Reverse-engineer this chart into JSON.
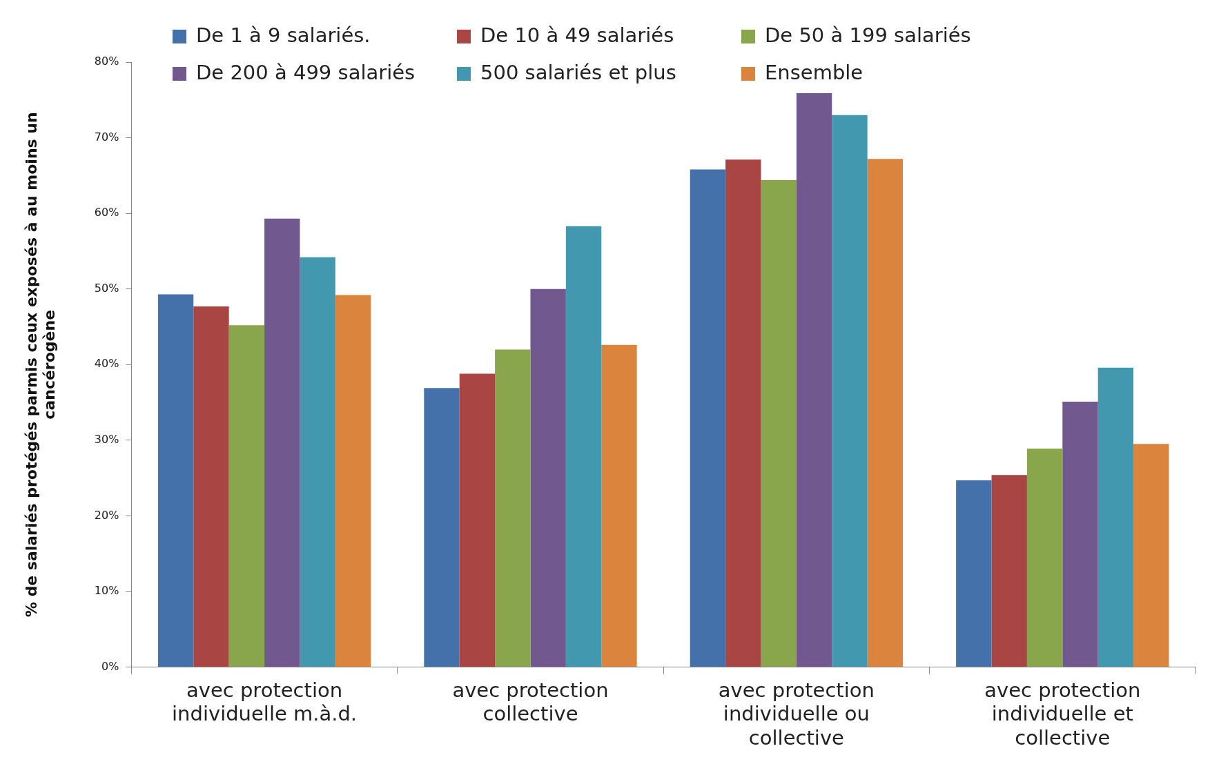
{
  "chart_data": {
    "type": "bar",
    "ylabel": "% de salariés protégés parmis ceux exposés à au moins un cancérogène",
    "categories": [
      "avec protection individuelle m.à.d.",
      "avec protection collective",
      "avec protection individuelle ou collective",
      "avec protection individuelle et collective"
    ],
    "series": [
      {
        "name": "De 1 à 9 salariés.",
        "color": "#4471a9",
        "values": [
          49.3,
          36.9,
          65.8,
          24.7
        ]
      },
      {
        "name": "De 10 à 49 salariés",
        "color": "#a94543",
        "values": [
          47.7,
          38.8,
          67.1,
          25.4
        ]
      },
      {
        "name": "De 50 à 199 salariés",
        "color": "#8aa64c",
        "values": [
          45.2,
          42.0,
          64.4,
          28.9
        ]
      },
      {
        "name": "De 200 à 499 salariés",
        "color": "#71588e",
        "values": [
          59.3,
          50.0,
          75.9,
          35.1
        ]
      },
      {
        "name": "500 salariés et plus",
        "color": "#4198af",
        "values": [
          54.2,
          58.3,
          73.0,
          39.6
        ]
      },
      {
        "name": "Ensemble",
        "color": "#db843d",
        "values": [
          49.2,
          42.6,
          67.2,
          29.5
        ]
      }
    ],
    "ylim": [
      0,
      80
    ],
    "yticks": [
      {
        "value": 0,
        "label": "0%"
      },
      {
        "value": 10,
        "label": "10%"
      },
      {
        "value": 20,
        "label": "20%"
      },
      {
        "value": 30,
        "label": "30%"
      },
      {
        "value": 40,
        "label": "40%"
      },
      {
        "value": 50,
        "label": "50%"
      },
      {
        "value": 60,
        "label": "60%"
      },
      {
        "value": 70,
        "label": "70%"
      },
      {
        "value": 80,
        "label": "80%"
      }
    ],
    "grid": false,
    "legend": "top left"
  }
}
